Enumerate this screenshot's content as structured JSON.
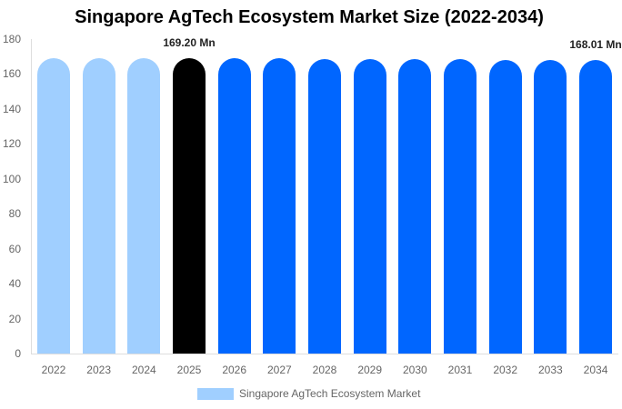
{
  "chart_data": {
    "type": "bar",
    "title": "Singapore AgTech Ecosystem Market Size (2022-2034)",
    "xlabel": "",
    "ylabel": "",
    "ylim": [
      0,
      180
    ],
    "yticks": [
      0,
      20,
      40,
      60,
      80,
      100,
      120,
      140,
      160,
      180
    ],
    "grid": false,
    "legend_position": "bottom",
    "categories": [
      "2022",
      "2023",
      "2024",
      "2025",
      "2026",
      "2027",
      "2028",
      "2029",
      "2030",
      "2031",
      "2032",
      "2033",
      "2034"
    ],
    "series": [
      {
        "name": "Singapore AgTech Ecosystem Market",
        "values": [
          169.3,
          169.3,
          169.3,
          169.2,
          169.07,
          168.94,
          168.81,
          168.67,
          168.54,
          168.41,
          168.27,
          168.14,
          168.01
        ]
      }
    ],
    "bar_colors": [
      "#a0cfff",
      "#a0cfff",
      "#a0cfff",
      "#000000",
      "#0066ff",
      "#0066ff",
      "#0066ff",
      "#0066ff",
      "#0066ff",
      "#0066ff",
      "#0066ff",
      "#0066ff",
      "#0066ff"
    ],
    "annotations": [
      {
        "category": "2025",
        "text": "169.20 Mn"
      },
      {
        "category": "2034",
        "text": "168.01 Mn"
      }
    ],
    "legend": [
      {
        "label": "Singapore AgTech Ecosystem Market",
        "color": "#a0cfff"
      }
    ]
  }
}
